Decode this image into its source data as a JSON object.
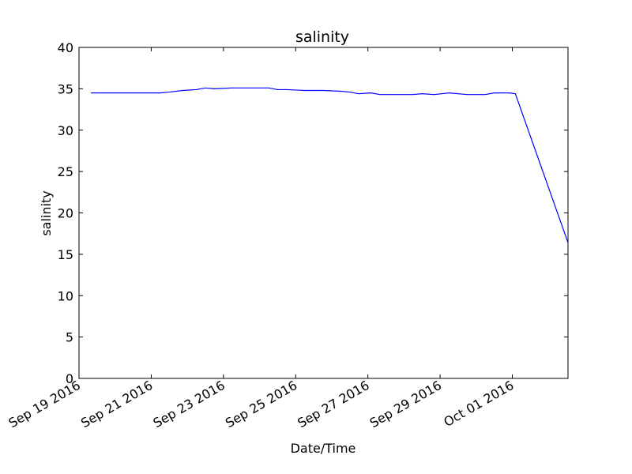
{
  "chart_data": {
    "type": "line",
    "title": "salinity",
    "xlabel": "Date/Time",
    "ylabel": "salinity",
    "xlim": [
      "2016-09-19 00:00",
      "2016-10-02 13:00"
    ],
    "ylim": [
      0,
      40
    ],
    "yticks": [
      0,
      5,
      10,
      15,
      20,
      25,
      30,
      35,
      40
    ],
    "xticks": [
      {
        "date": "2016-09-19",
        "label": "Sep 19 2016"
      },
      {
        "date": "2016-09-21",
        "label": "Sep 21 2016"
      },
      {
        "date": "2016-09-23",
        "label": "Sep 23 2016"
      },
      {
        "date": "2016-09-25",
        "label": "Sep 25 2016"
      },
      {
        "date": "2016-09-27",
        "label": "Sep 27 2016"
      },
      {
        "date": "2016-09-29",
        "label": "Sep 29 2016"
      },
      {
        "date": "2016-10-01",
        "label": "Oct 01 2016"
      }
    ],
    "grid": false,
    "series": [
      {
        "color": "#0000ff",
        "points": [
          {
            "x": "2016-09-19 08:00",
            "y": 34.5
          },
          {
            "x": "2016-09-19 18:00",
            "y": 34.5
          },
          {
            "x": "2016-09-20 06:00",
            "y": 34.5
          },
          {
            "x": "2016-09-20 18:00",
            "y": 34.5
          },
          {
            "x": "2016-09-21 06:00",
            "y": 34.5
          },
          {
            "x": "2016-09-21 12:00",
            "y": 34.6
          },
          {
            "x": "2016-09-21 21:00",
            "y": 34.8
          },
          {
            "x": "2016-09-22 06:00",
            "y": 34.9
          },
          {
            "x": "2016-09-22 12:00",
            "y": 35.1
          },
          {
            "x": "2016-09-22 18:00",
            "y": 35.0
          },
          {
            "x": "2016-09-23 06:00",
            "y": 35.1
          },
          {
            "x": "2016-09-23 18:00",
            "y": 35.1
          },
          {
            "x": "2016-09-24 06:00",
            "y": 35.1
          },
          {
            "x": "2016-09-24 12:00",
            "y": 34.9
          },
          {
            "x": "2016-09-24 18:00",
            "y": 34.9
          },
          {
            "x": "2016-09-25 06:00",
            "y": 34.8
          },
          {
            "x": "2016-09-25 18:00",
            "y": 34.8
          },
          {
            "x": "2016-09-26 06:00",
            "y": 34.7
          },
          {
            "x": "2016-09-26 12:00",
            "y": 34.6
          },
          {
            "x": "2016-09-26 18:00",
            "y": 34.4
          },
          {
            "x": "2016-09-27 02:00",
            "y": 34.5
          },
          {
            "x": "2016-09-27 08:00",
            "y": 34.3
          },
          {
            "x": "2016-09-27 18:00",
            "y": 34.3
          },
          {
            "x": "2016-09-28 06:00",
            "y": 34.3
          },
          {
            "x": "2016-09-28 12:00",
            "y": 34.4
          },
          {
            "x": "2016-09-28 20:00",
            "y": 34.3
          },
          {
            "x": "2016-09-29 06:00",
            "y": 34.5
          },
          {
            "x": "2016-09-29 18:00",
            "y": 34.3
          },
          {
            "x": "2016-09-30 06:00",
            "y": 34.3
          },
          {
            "x": "2016-09-30 12:00",
            "y": 34.5
          },
          {
            "x": "2016-09-30 22:00",
            "y": 34.5
          },
          {
            "x": "2016-10-01 02:00",
            "y": 34.4
          },
          {
            "x": "2016-10-02 13:00",
            "y": 16.4
          }
        ]
      }
    ]
  }
}
